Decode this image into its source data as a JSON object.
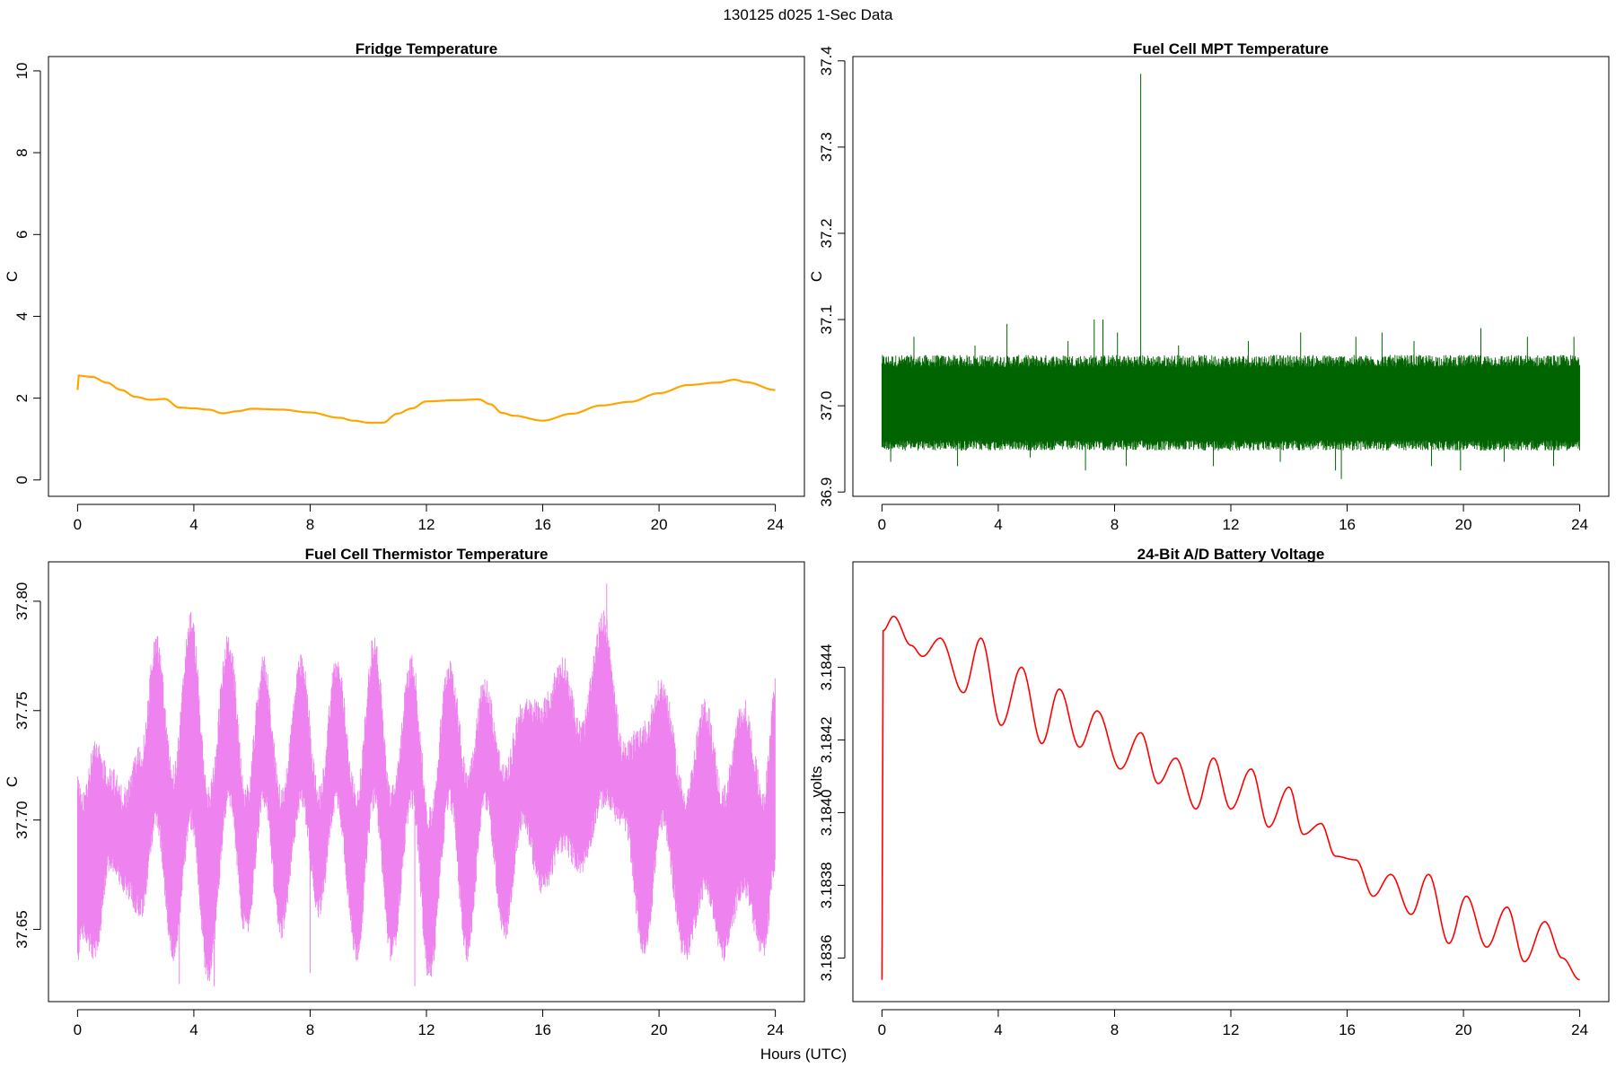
{
  "figure": {
    "suptitle": "130125   d025   1-Sec Data",
    "xlabel": "Hours (UTC)"
  },
  "chart_data": [
    {
      "type": "line",
      "title": "Fridge Temperature",
      "xlabel": "",
      "ylabel": "C",
      "color": "#FFA500",
      "xlim": [
        -1,
        25
      ],
      "ylim": [
        -0.4,
        10.35
      ],
      "xticks": [
        0,
        4,
        8,
        12,
        16,
        20,
        24
      ],
      "xtick_labels": [
        "0",
        "4",
        "8",
        "12",
        "16",
        "20",
        "24"
      ],
      "yticks": [
        0,
        2,
        4,
        6,
        8,
        10
      ],
      "ytick_labels": [
        "0",
        "2",
        "4",
        "6",
        "8",
        "10"
      ],
      "x": [
        0,
        0.02,
        0.5,
        1.0,
        1.5,
        2.0,
        2.5,
        3.0,
        3.5,
        4.0,
        4.5,
        5.0,
        5.5,
        6.0,
        7.0,
        8.0,
        9.0,
        9.5,
        10.0,
        10.5,
        11.0,
        11.5,
        12.0,
        13.0,
        13.8,
        14.2,
        14.6,
        15.0,
        16.0,
        17.0,
        18.0,
        19.0,
        20.0,
        21.0,
        22.0,
        22.6,
        23.0,
        24.0
      ],
      "y": [
        2.2,
        2.55,
        2.52,
        2.38,
        2.2,
        2.03,
        1.96,
        1.98,
        1.77,
        1.75,
        1.72,
        1.63,
        1.68,
        1.74,
        1.72,
        1.65,
        1.52,
        1.45,
        1.4,
        1.4,
        1.62,
        1.75,
        1.92,
        1.95,
        1.97,
        1.85,
        1.64,
        1.57,
        1.45,
        1.62,
        1.82,
        1.91,
        2.12,
        2.32,
        2.38,
        2.45,
        2.39,
        2.2
      ]
    },
    {
      "type": "line",
      "title": "Fuel Cell MPT Temperature",
      "xlabel": "",
      "ylabel": "C",
      "color": "#006400",
      "xlim": [
        -1,
        25
      ],
      "ylim": [
        36.895,
        37.405
      ],
      "xticks": [
        0,
        4,
        8,
        12,
        16,
        20,
        24
      ],
      "xtick_labels": [
        "0",
        "4",
        "8",
        "12",
        "16",
        "20",
        "24"
      ],
      "yticks": [
        36.9,
        37.0,
        37.1,
        37.2,
        37.3,
        37.4
      ],
      "ytick_labels": [
        "36.9",
        "37.0",
        "37.1",
        "37.2",
        "37.3",
        "37.4"
      ],
      "baseline": 37.0,
      "band_low": 36.96,
      "band_high": 37.045,
      "spikes": [
        {
          "x": 0.3,
          "y": 36.935
        },
        {
          "x": 1.1,
          "y": 37.08
        },
        {
          "x": 2.6,
          "y": 36.93
        },
        {
          "x": 3.2,
          "y": 37.07
        },
        {
          "x": 4.3,
          "y": 37.095
        },
        {
          "x": 5.1,
          "y": 36.94
        },
        {
          "x": 6.4,
          "y": 37.075
        },
        {
          "x": 7.0,
          "y": 36.925
        },
        {
          "x": 7.3,
          "y": 37.1
        },
        {
          "x": 7.6,
          "y": 37.1
        },
        {
          "x": 8.1,
          "y": 37.085
        },
        {
          "x": 8.4,
          "y": 36.93
        },
        {
          "x": 8.9,
          "y": 37.385
        },
        {
          "x": 10.2,
          "y": 37.07
        },
        {
          "x": 11.4,
          "y": 36.93
        },
        {
          "x": 12.6,
          "y": 37.075
        },
        {
          "x": 13.7,
          "y": 36.935
        },
        {
          "x": 14.4,
          "y": 37.085
        },
        {
          "x": 15.6,
          "y": 36.925
        },
        {
          "x": 15.8,
          "y": 36.915
        },
        {
          "x": 16.3,
          "y": 37.08
        },
        {
          "x": 17.2,
          "y": 37.085
        },
        {
          "x": 18.3,
          "y": 37.075
        },
        {
          "x": 18.9,
          "y": 36.93
        },
        {
          "x": 19.9,
          "y": 36.925
        },
        {
          "x": 20.6,
          "y": 37.09
        },
        {
          "x": 21.4,
          "y": 36.935
        },
        {
          "x": 22.2,
          "y": 37.08
        },
        {
          "x": 23.1,
          "y": 36.93
        },
        {
          "x": 23.8,
          "y": 37.08
        }
      ]
    },
    {
      "type": "line",
      "title": "Fuel Cell Thermistor Temperature",
      "xlabel": "",
      "ylabel": "C",
      "color": "#EE82EE",
      "xlim": [
        -1,
        25
      ],
      "ylim": [
        37.617,
        37.818
      ],
      "xticks": [
        0,
        4,
        8,
        12,
        16,
        20,
        24
      ],
      "xtick_labels": [
        "0",
        "4",
        "8",
        "12",
        "16",
        "20",
        "24"
      ],
      "yticks": [
        37.65,
        37.7,
        37.75,
        37.8
      ],
      "ytick_labels": [
        "37.65",
        "37.70",
        "37.75",
        "37.80"
      ],
      "envelope": {
        "x": [
          0,
          0.2,
          0.6,
          1.1,
          1.6,
          2.2,
          2.7,
          3.3,
          3.9,
          4.5,
          5.2,
          5.8,
          6.4,
          7.0,
          7.7,
          8.3,
          8.9,
          9.6,
          10.2,
          10.8,
          11.5,
          12.1,
          12.8,
          13.4,
          14.0,
          14.7,
          15.3,
          16.0,
          16.7,
          17.3,
          18.1,
          18.8,
          19.5,
          20.1,
          20.9,
          21.6,
          22.2,
          22.9,
          23.6,
          24.0
        ],
        "low": [
          37.64,
          37.65,
          37.64,
          37.68,
          37.67,
          37.66,
          37.7,
          37.64,
          37.7,
          37.63,
          37.71,
          37.65,
          37.71,
          37.65,
          37.71,
          37.66,
          37.71,
          37.64,
          37.71,
          37.64,
          37.71,
          37.63,
          37.71,
          37.64,
          37.71,
          37.65,
          37.7,
          37.67,
          37.69,
          37.68,
          37.71,
          37.7,
          37.64,
          37.7,
          37.64,
          37.67,
          37.64,
          37.67,
          37.64,
          37.68
        ],
        "high": [
          37.72,
          37.71,
          37.73,
          37.72,
          37.71,
          37.73,
          37.78,
          37.72,
          37.79,
          37.71,
          37.78,
          37.71,
          37.77,
          37.71,
          37.77,
          37.71,
          37.77,
          37.71,
          37.78,
          37.71,
          37.77,
          37.7,
          37.77,
          37.72,
          37.76,
          37.72,
          37.75,
          37.75,
          37.77,
          37.74,
          37.79,
          37.73,
          37.74,
          37.76,
          37.71,
          37.75,
          37.71,
          37.75,
          37.71,
          37.76
        ]
      },
      "extremes": [
        {
          "x": 3.9,
          "y": 37.795
        },
        {
          "x": 3.5,
          "y": 37.625
        },
        {
          "x": 4.7,
          "y": 37.624
        },
        {
          "x": 11.6,
          "y": 37.624
        },
        {
          "x": 18.2,
          "y": 37.808
        },
        {
          "x": 8.0,
          "y": 37.63
        }
      ]
    },
    {
      "type": "line",
      "title": "24-Bit A/D Battery Voltage",
      "xlabel": "",
      "ylabel": "volts",
      "color": "#FF0000",
      "xlim": [
        -1,
        25
      ],
      "ylim": [
        3.18348,
        3.18469
      ],
      "xticks": [
        0,
        4,
        8,
        12,
        16,
        20,
        24
      ],
      "xtick_labels": [
        "0",
        "4",
        "8",
        "12",
        "16",
        "20",
        "24"
      ],
      "yticks": [
        3.1836,
        3.1838,
        3.184,
        3.1842,
        3.1844
      ],
      "ytick_labels": [
        "3.1836",
        "3.1838",
        "3.1840",
        "3.1842",
        "3.1844"
      ],
      "x": [
        0,
        0.03,
        0.4,
        1.0,
        1.4,
        2.0,
        2.8,
        3.4,
        4.1,
        4.8,
        5.5,
        6.1,
        6.8,
        7.4,
        8.2,
        8.9,
        9.5,
        10.1,
        10.8,
        11.4,
        12.0,
        12.7,
        13.3,
        14.0,
        14.5,
        15.1,
        15.6,
        16.3,
        16.9,
        17.5,
        18.2,
        18.8,
        19.5,
        20.1,
        20.8,
        21.5,
        22.1,
        22.8,
        23.4,
        24.0
      ],
      "y": [
        3.18354,
        3.1845,
        3.18454,
        3.18446,
        3.18443,
        3.18448,
        3.18433,
        3.18448,
        3.18424,
        3.1844,
        3.18419,
        3.18434,
        3.18418,
        3.18428,
        3.18412,
        3.18422,
        3.18408,
        3.18415,
        3.18401,
        3.18415,
        3.18401,
        3.18412,
        3.18396,
        3.18407,
        3.18394,
        3.18397,
        3.18388,
        3.18387,
        3.18377,
        3.18383,
        3.18372,
        3.18383,
        3.18364,
        3.18377,
        3.18363,
        3.18374,
        3.18359,
        3.1837,
        3.1836,
        3.18354
      ]
    }
  ]
}
